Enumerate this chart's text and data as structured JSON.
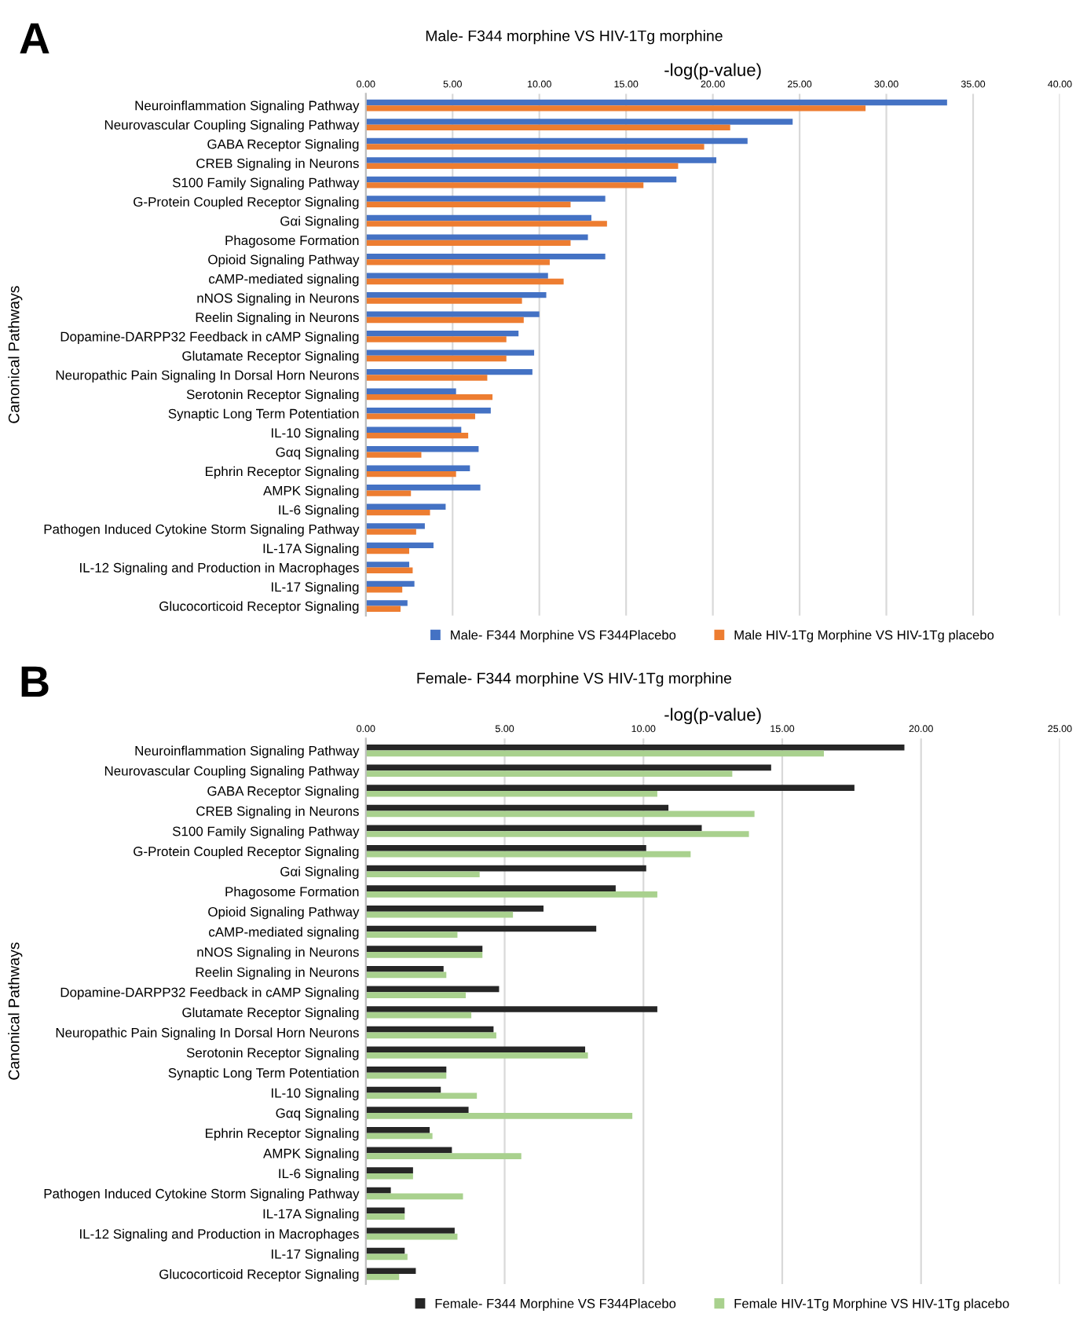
{
  "chart_data": [
    {
      "type": "bar",
      "orientation": "horizontal",
      "title": "Male- F344 morphine VS HIV-1Tg morphine",
      "xlabel": "-log(p-value)",
      "ylabel": "Canonical Pathways",
      "annotations": [
        "A"
      ],
      "categories": [
        "Neuroinflammation Signaling Pathway",
        "Neurovascular Coupling Signaling Pathway",
        "GABA Receptor Signaling",
        "CREB Signaling in Neurons",
        "S100 Family Signaling Pathway",
        "G-Protein Coupled Receptor Signaling",
        "Gαi Signaling",
        "Phagosome Formation",
        "Opioid Signaling Pathway",
        "cAMP-mediated signaling",
        "nNOS Signaling in Neurons",
        "Reelin Signaling in Neurons",
        "Dopamine-DARPP32 Feedback in cAMP Signaling",
        "Glutamate Receptor Signaling",
        "Neuropathic Pain Signaling In Dorsal Horn Neurons",
        "Serotonin Receptor Signaling",
        "Synaptic Long Term Potentiation",
        "IL-10 Signaling",
        "Gαq Signaling",
        "Ephrin Receptor Signaling",
        "AMPK Signaling",
        "IL-6 Signaling",
        "Pathogen Induced Cytokine Storm Signaling Pathway",
        "IL-17A Signaling",
        "IL-12 Signaling and Production in Macrophages",
        "IL-17 Signaling",
        "Glucocorticoid Receptor Signaling"
      ],
      "series": [
        {
          "name": "Male- F344 Morphine VS F344Placebo",
          "color": "#4472c4",
          "values": [
            33.5,
            24.6,
            22.0,
            20.2,
            17.9,
            13.8,
            13.0,
            12.8,
            13.8,
            10.5,
            10.4,
            10.0,
            8.8,
            9.7,
            9.6,
            5.2,
            7.2,
            5.5,
            6.5,
            6.0,
            6.6,
            4.6,
            3.4,
            3.9,
            2.5,
            2.8,
            2.4
          ]
        },
        {
          "name": "Male HIV-1Tg Morphine VS HIV-1Tg placebo",
          "color": "#ed7d31",
          "values": [
            28.8,
            21.0,
            19.5,
            18.0,
            16.0,
            11.8,
            13.9,
            11.8,
            10.6,
            11.4,
            9.0,
            9.1,
            8.1,
            8.1,
            7.0,
            7.3,
            6.3,
            5.9,
            3.2,
            5.2,
            2.6,
            3.7,
            2.9,
            2.5,
            2.7,
            2.1,
            2.0
          ]
        }
      ],
      "xlim": [
        0,
        40
      ],
      "xticks": [
        {
          "value": 0,
          "label": "0.00"
        },
        {
          "value": 5,
          "label": "5.00"
        },
        {
          "value": 10,
          "label": "10.00"
        },
        {
          "value": 15,
          "label": "15.00"
        },
        {
          "value": 20,
          "label": "20.00"
        },
        {
          "value": 25,
          "label": "25.00"
        },
        {
          "value": 30,
          "label": "30.00"
        },
        {
          "value": 35,
          "label": "35.00"
        },
        {
          "value": 40,
          "label": "40.00"
        }
      ],
      "grid": "x",
      "legend": "bottom"
    },
    {
      "type": "bar",
      "orientation": "horizontal",
      "title": "Female- F344 morphine VS HIV-1Tg morphine",
      "xlabel": "-log(p-value)",
      "ylabel": "Canonical Pathways",
      "annotations": [
        "B"
      ],
      "categories": [
        "Neuroinflammation Signaling Pathway",
        "Neurovascular Coupling Signaling Pathway",
        "GABA Receptor Signaling",
        "CREB Signaling in Neurons",
        "S100 Family Signaling Pathway",
        "G-Protein Coupled Receptor Signaling",
        "Gαi Signaling",
        "Phagosome Formation",
        "Opioid Signaling Pathway",
        "cAMP-mediated signaling",
        "nNOS Signaling in Neurons",
        "Reelin Signaling in Neurons",
        "Dopamine-DARPP32 Feedback in cAMP Signaling",
        "Glutamate Receptor Signaling",
        "Neuropathic Pain Signaling In Dorsal Horn Neurons",
        "Serotonin Receptor Signaling",
        "Synaptic Long Term Potentiation",
        "IL-10 Signaling",
        "Gαq Signaling",
        "Ephrin Receptor Signaling",
        "AMPK Signaling",
        "IL-6 Signaling",
        "Pathogen Induced Cytokine Storm Signaling Pathway",
        "IL-17A Signaling",
        "IL-12 Signaling and Production in Macrophages",
        "IL-17 Signaling",
        "Glucocorticoid Receptor Signaling"
      ],
      "series": [
        {
          "name": "Female- F344 Morphine VS F344Placebo",
          "color": "#262626",
          "values": [
            19.4,
            14.6,
            17.6,
            10.9,
            12.1,
            10.1,
            10.1,
            9.0,
            6.4,
            8.3,
            4.2,
            2.8,
            4.8,
            10.5,
            4.6,
            7.9,
            2.9,
            2.7,
            3.7,
            2.3,
            3.1,
            1.7,
            0.9,
            1.4,
            3.2,
            1.4,
            1.8
          ]
        },
        {
          "name": "Female HIV-1Tg Morphine VS HIV-1Tg placebo",
          "color": "#a9d18e",
          "values": [
            16.5,
            13.2,
            10.5,
            14.0,
            13.8,
            11.7,
            4.1,
            10.5,
            5.3,
            3.3,
            4.2,
            2.9,
            3.6,
            3.8,
            4.7,
            8.0,
            2.9,
            4.0,
            9.6,
            2.4,
            5.6,
            1.7,
            3.5,
            1.4,
            3.3,
            1.5,
            1.2
          ]
        }
      ],
      "xlim": [
        0,
        25
      ],
      "xticks": [
        {
          "value": 0,
          "label": "0.00"
        },
        {
          "value": 5,
          "label": "5.00"
        },
        {
          "value": 10,
          "label": "10.00"
        },
        {
          "value": 15,
          "label": "15.00"
        },
        {
          "value": 20,
          "label": "20.00"
        },
        {
          "value": 25,
          "label": "25.00"
        }
      ],
      "grid": "x",
      "legend": "bottom"
    }
  ]
}
